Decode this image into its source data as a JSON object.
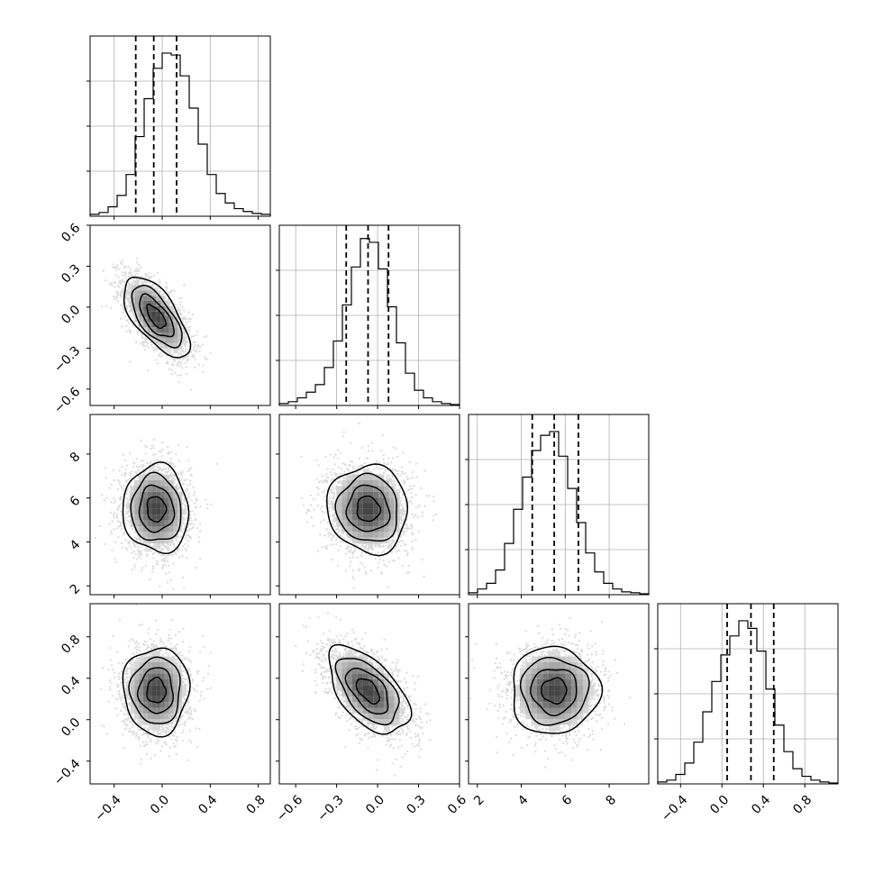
{
  "colors": {
    "ink": "#000000",
    "grid": "#b0b0b0",
    "scatter": "#bdbdbd",
    "background": "#ffffff"
  },
  "chart_data": {
    "type": "corner",
    "params": [
      {
        "center": -0.05,
        "sigma": 0.13,
        "range": [
          -0.6,
          0.9
        ],
        "ticks": [
          -0.4,
          0.0,
          0.4,
          0.8
        ],
        "tick_labels": [
          "−0.4",
          "0.0",
          "0.4",
          "0.8"
        ],
        "quantiles": [
          -0.22,
          -0.07,
          0.12
        ]
      },
      {
        "center": -0.07,
        "sigma": 0.14,
        "range": [
          -0.72,
          0.6
        ],
        "ticks": [
          -0.6,
          -0.3,
          0.0,
          0.3,
          0.6
        ],
        "tick_labels": [
          "−0.6",
          "−0.3",
          "0.0",
          "0.3",
          "0.6"
        ],
        "quantiles": [
          -0.23,
          -0.07,
          0.08
        ]
      },
      {
        "center": 5.5,
        "sigma": 0.95,
        "range": [
          1.6,
          9.8
        ],
        "ticks": [
          2,
          4,
          6,
          8
        ],
        "tick_labels": [
          "2",
          "4",
          "6",
          "8"
        ],
        "quantiles": [
          4.5,
          5.5,
          6.6
        ]
      },
      {
        "center": 0.28,
        "sigma": 0.2,
        "range": [
          -0.62,
          1.12
        ],
        "ticks": [
          -0.4,
          0.0,
          0.4,
          0.8
        ],
        "tick_labels": [
          "−0.4",
          "0.0",
          "0.4",
          "0.8"
        ],
        "quantiles": [
          0.05,
          0.28,
          0.5
        ]
      }
    ],
    "histograms": [
      {
        "param": 0,
        "counts": [
          0.01,
          0.02,
          0.05,
          0.11,
          0.22,
          0.42,
          0.62,
          0.78,
          0.86,
          0.85,
          0.74,
          0.57,
          0.38,
          0.22,
          0.12,
          0.07,
          0.04,
          0.025,
          0.015,
          0.01
        ],
        "max": 0.95,
        "bin_range": [
          -0.6,
          0.9
        ]
      },
      {
        "param": 1,
        "counts": [
          0.01,
          0.02,
          0.04,
          0.07,
          0.11,
          0.2,
          0.34,
          0.53,
          0.73,
          0.88,
          0.86,
          0.72,
          0.52,
          0.33,
          0.17,
          0.08,
          0.04,
          0.02,
          0.01,
          0.005
        ],
        "max": 0.95,
        "bin_range": [
          -0.72,
          0.6
        ]
      },
      {
        "param": 2,
        "counts": [
          0.01,
          0.03,
          0.06,
          0.13,
          0.27,
          0.45,
          0.62,
          0.76,
          0.84,
          0.86,
          0.73,
          0.56,
          0.38,
          0.22,
          0.12,
          0.06,
          0.03,
          0.015,
          0.01,
          0.005
        ],
        "max": 0.95,
        "bin_range": [
          1.6,
          9.8
        ]
      },
      {
        "param": 3,
        "counts": [
          0.01,
          0.02,
          0.05,
          0.11,
          0.22,
          0.38,
          0.54,
          0.68,
          0.78,
          0.86,
          0.82,
          0.7,
          0.5,
          0.31,
          0.17,
          0.08,
          0.04,
          0.02,
          0.01,
          0.005
        ],
        "max": 0.95,
        "bin_range": [
          -0.62,
          1.12
        ]
      }
    ],
    "pairs": [
      {
        "x": 0,
        "y": 1,
        "correlation": -0.65
      },
      {
        "x": 0,
        "y": 2,
        "correlation": -0.05
      },
      {
        "x": 1,
        "y": 2,
        "correlation": -0.05
      },
      {
        "x": 0,
        "y": 3,
        "correlation": 0.0
      },
      {
        "x": 1,
        "y": 3,
        "correlation": -0.55
      },
      {
        "x": 2,
        "y": 3,
        "correlation": 0.0
      }
    ],
    "contour_levels_sigma": [
      0.6,
      1.1,
      1.6,
      2.1
    ]
  }
}
